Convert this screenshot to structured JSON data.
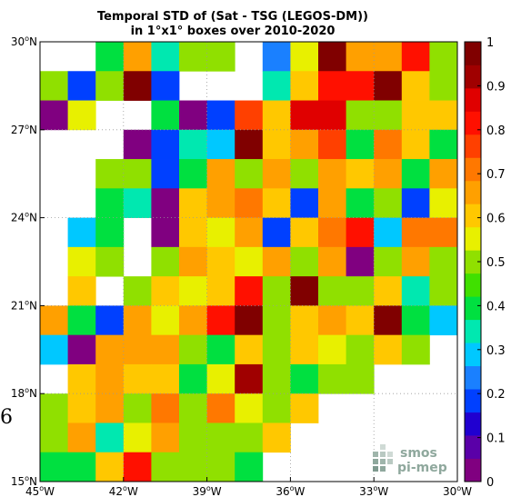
{
  "chart_data": {
    "type": "heatmap",
    "title": [
      "Temporal STD of (Sat - TSG (LEGOS-DM))",
      "in 1°x1° boxes over 2010-2020"
    ],
    "x_ticks": [
      {
        "value": -45,
        "label": "45°W"
      },
      {
        "value": -42,
        "label": "42°W"
      },
      {
        "value": -39,
        "label": "39°W"
      },
      {
        "value": -36,
        "label": "36°W"
      },
      {
        "value": -33,
        "label": "33°W"
      },
      {
        "value": -30,
        "label": "30°W"
      }
    ],
    "y_ticks": [
      {
        "value": 15,
        "label": "15°N"
      },
      {
        "value": 18,
        "label": "18°N"
      },
      {
        "value": 21,
        "label": "21°N"
      },
      {
        "value": 24,
        "label": "24°N"
      },
      {
        "value": 27,
        "label": "27°N"
      },
      {
        "value": 30,
        "label": "30°N"
      }
    ],
    "xlim": [
      -45,
      -30
    ],
    "ylim": [
      15,
      30
    ],
    "grid": true,
    "colorbar": {
      "range": [
        0,
        1
      ],
      "ticks": [
        "0",
        "0.1",
        "0.2",
        "0.3",
        "0.4",
        "0.5",
        "0.6",
        "0.7",
        "0.8",
        "0.9",
        "1"
      ],
      "palette": [
        "#800080",
        "#5a00a8",
        "#2000d0",
        "#0040ff",
        "#1a80ff",
        "#00c8ff",
        "#00e8b0",
        "#00e040",
        "#40e000",
        "#90e000",
        "#e8f000",
        "#ffc800",
        "#ffa000",
        "#ff7800",
        "#ff4000",
        "#ff1000",
        "#e00000",
        "#a00000",
        "#800000"
      ]
    },
    "cell_size_deg": 1,
    "rows_lat_from": 29,
    "cols_lon_from": -45,
    "grid_values": [
      [
        null,
        null,
        0.38,
        0.68,
        0.32,
        0.48,
        0.52,
        null,
        0.22,
        0.55,
        0.98,
        0.68,
        0.68,
        0.82,
        0.52
      ],
      [
        0.48,
        0.18,
        0.52,
        0.97,
        0.18,
        null,
        null,
        null,
        0.32,
        0.58,
        0.82,
        0.82,
        0.97,
        0.62,
        0.52
      ],
      [
        0.05,
        0.55,
        null,
        null,
        0.38,
        0.05,
        0.18,
        0.75,
        0.58,
        0.88,
        0.88,
        0.48,
        0.52,
        0.58,
        0.62
      ],
      [
        null,
        null,
        null,
        0.05,
        0.18,
        0.32,
        0.28,
        0.97,
        0.62,
        0.68,
        0.75,
        0.42,
        0.72,
        0.58,
        0.42
      ],
      [
        null,
        null,
        0.52,
        0.52,
        0.18,
        0.38,
        0.68,
        0.52,
        0.68,
        0.48,
        0.68,
        0.58,
        0.68,
        0.38,
        0.68
      ],
      [
        null,
        null,
        0.42,
        0.32,
        0.05,
        0.62,
        0.68,
        0.72,
        0.62,
        0.18,
        0.68,
        0.38,
        0.48,
        0.18,
        0.55
      ],
      [
        null,
        0.28,
        0.42,
        null,
        0.05,
        0.62,
        0.55,
        0.68,
        0.18,
        0.62,
        0.72,
        0.82,
        0.28,
        0.72,
        0.72
      ],
      [
        null,
        0.55,
        0.48,
        null,
        0.48,
        0.68,
        0.62,
        0.55,
        0.68,
        0.48,
        0.68,
        0.05,
        0.48,
        0.68,
        0.52
      ],
      [
        null,
        0.62,
        null,
        0.48,
        0.58,
        0.55,
        0.62,
        0.82,
        0.48,
        0.97,
        0.48,
        0.48,
        0.58,
        0.32,
        0.48
      ],
      [
        0.68,
        0.38,
        0.18,
        0.68,
        0.55,
        0.68,
        0.82,
        0.97,
        0.48,
        0.62,
        0.68,
        0.62,
        0.97,
        0.38,
        0.28
      ],
      [
        0.28,
        0.05,
        0.68,
        0.68,
        0.68,
        0.48,
        0.42,
        0.58,
        0.48,
        0.62,
        0.55,
        0.48,
        0.62,
        0.48,
        null
      ],
      [
        null,
        0.62,
        0.68,
        0.62,
        0.62,
        0.42,
        0.55,
        0.92,
        0.48,
        0.42,
        0.48,
        0.52,
        null,
        null,
        null
      ],
      [
        0.52,
        0.58,
        0.68,
        0.48,
        0.72,
        0.48,
        0.72,
        0.55,
        0.48,
        0.58,
        null,
        null,
        null,
        null,
        null
      ],
      [
        0.48,
        0.68,
        0.32,
        0.55,
        0.68,
        0.48,
        0.52,
        0.48,
        0.62,
        null,
        null,
        null,
        null,
        null,
        null
      ],
      [
        0.42,
        0.42,
        0.62,
        0.82,
        0.52,
        0.48,
        0.48,
        0.38,
        null,
        null,
        null,
        null,
        null,
        null,
        null
      ]
    ]
  },
  "page": {
    "edge_fragment": "6",
    "logo_line1": "smos",
    "logo_line2": "pi-mep"
  }
}
